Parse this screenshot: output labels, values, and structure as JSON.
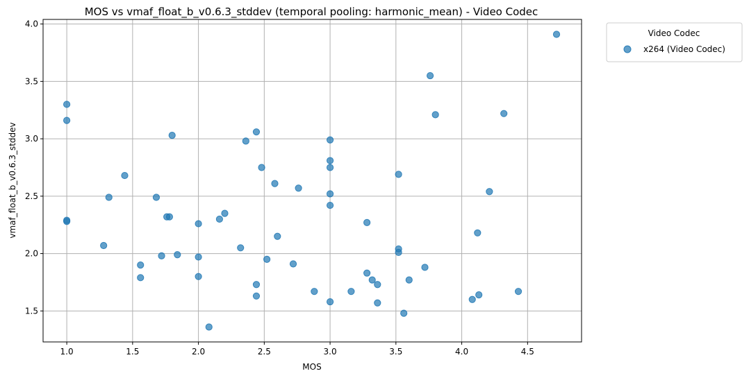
{
  "chart_data": {
    "type": "scatter",
    "title": "MOS vs vmaf_float_b_v0.6.3_stddev (temporal pooling: harmonic_mean) - Video Codec",
    "xlabel": "MOS",
    "ylabel": "vmaf_float_b_v0.6.3_stddev",
    "xlim": [
      0.82,
      4.91
    ],
    "ylim": [
      1.23,
      4.04
    ],
    "xticks": [
      1.0,
      1.5,
      2.0,
      2.5,
      3.0,
      3.5,
      4.0,
      4.5
    ],
    "xtick_labels": [
      "1.0",
      "1.5",
      "2.0",
      "2.5",
      "3.0",
      "3.5",
      "4.0",
      "4.5"
    ],
    "yticks": [
      1.5,
      2.0,
      2.5,
      3.0,
      3.5,
      4.0
    ],
    "ytick_labels": [
      "1.5",
      "2.0",
      "2.5",
      "3.0",
      "3.5",
      "4.0"
    ],
    "grid": true,
    "legend": {
      "title": "Video Codec",
      "placement": "outside-top-right"
    },
    "series": [
      {
        "name": "x264 (Video Codec)",
        "color": "#1f77b4",
        "points": [
          [
            1.0,
            3.3
          ],
          [
            1.0,
            3.16
          ],
          [
            1.0,
            2.29
          ],
          [
            1.0,
            2.28
          ],
          [
            1.28,
            2.07
          ],
          [
            1.32,
            2.49
          ],
          [
            1.44,
            2.68
          ],
          [
            1.56,
            1.9
          ],
          [
            1.56,
            1.79
          ],
          [
            1.68,
            2.49
          ],
          [
            1.72,
            1.98
          ],
          [
            1.76,
            2.32
          ],
          [
            1.78,
            2.32
          ],
          [
            1.8,
            3.03
          ],
          [
            1.84,
            1.99
          ],
          [
            2.0,
            2.26
          ],
          [
            2.0,
            1.97
          ],
          [
            2.0,
            1.8
          ],
          [
            2.08,
            1.36
          ],
          [
            2.16,
            2.3
          ],
          [
            2.2,
            2.35
          ],
          [
            2.32,
            2.05
          ],
          [
            2.36,
            2.98
          ],
          [
            2.44,
            3.06
          ],
          [
            2.44,
            1.73
          ],
          [
            2.44,
            1.63
          ],
          [
            2.48,
            2.75
          ],
          [
            2.52,
            1.95
          ],
          [
            2.58,
            2.61
          ],
          [
            2.6,
            2.15
          ],
          [
            2.72,
            1.91
          ],
          [
            2.76,
            2.57
          ],
          [
            2.88,
            1.67
          ],
          [
            3.0,
            2.99
          ],
          [
            3.0,
            2.81
          ],
          [
            3.0,
            2.75
          ],
          [
            3.0,
            2.52
          ],
          [
            3.0,
            2.42
          ],
          [
            3.0,
            1.58
          ],
          [
            3.16,
            1.67
          ],
          [
            3.28,
            2.27
          ],
          [
            3.28,
            1.83
          ],
          [
            3.32,
            1.77
          ],
          [
            3.36,
            1.73
          ],
          [
            3.36,
            1.57
          ],
          [
            3.52,
            2.69
          ],
          [
            3.52,
            2.04
          ],
          [
            3.52,
            2.01
          ],
          [
            3.56,
            1.48
          ],
          [
            3.6,
            1.77
          ],
          [
            3.72,
            1.88
          ],
          [
            3.76,
            3.55
          ],
          [
            3.8,
            3.21
          ],
          [
            4.08,
            1.6
          ],
          [
            4.12,
            2.18
          ],
          [
            4.13,
            1.64
          ],
          [
            4.21,
            2.54
          ],
          [
            4.32,
            3.22
          ],
          [
            4.43,
            1.67
          ],
          [
            4.72,
            3.91
          ]
        ]
      }
    ]
  }
}
